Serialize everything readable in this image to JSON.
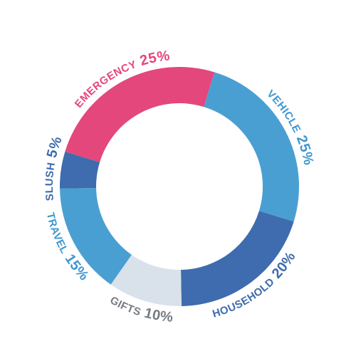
{
  "chart_data": {
    "type": "donut",
    "categories": [
      "VEHICLE",
      "HOUSEHOLD",
      "GIFTS",
      "TRAVEL",
      "SLUSH",
      "EMERGENCY"
    ],
    "values": [
      25,
      20,
      10,
      15,
      5,
      25
    ],
    "value_labels": [
      "25%",
      "20%",
      "10%",
      "15%",
      "5%",
      "25%"
    ],
    "colors": [
      "#4a9fd2",
      "#3e6cae",
      "#d9e2eb",
      "#4a9fd2",
      "#3e6cae",
      "#e4477b"
    ],
    "label_colors": [
      "#3f97cf",
      "#3e6cae",
      "#767b82",
      "#3f97cf",
      "#3e6cae",
      "#e4477b"
    ]
  }
}
